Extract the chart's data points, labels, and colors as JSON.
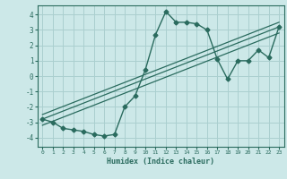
{
  "xlabel": "Humidex (Indice chaleur)",
  "ylabel": "",
  "xlim": [
    -0.5,
    23.5
  ],
  "ylim": [
    -4.6,
    4.6
  ],
  "yticks": [
    -4,
    -3,
    -2,
    -1,
    0,
    1,
    2,
    3,
    4
  ],
  "xticks": [
    0,
    1,
    2,
    3,
    4,
    5,
    6,
    7,
    8,
    9,
    10,
    11,
    12,
    13,
    14,
    15,
    16,
    17,
    18,
    19,
    20,
    21,
    22,
    23
  ],
  "background_color": "#cce8e8",
  "grid_color": "#aacfcf",
  "line_color": "#2a6b5e",
  "series": [
    {
      "x": [
        0,
        1,
        2,
        3,
        4,
        5,
        6,
        7,
        8,
        9,
        10,
        11,
        12,
        13,
        14,
        15,
        16,
        17,
        18,
        19,
        20,
        21,
        22,
        23
      ],
      "y": [
        -2.8,
        -3.0,
        -3.4,
        -3.5,
        -3.6,
        -3.8,
        -3.9,
        -3.8,
        -2.0,
        -1.3,
        0.4,
        2.7,
        4.2,
        3.5,
        3.5,
        3.4,
        3.0,
        1.1,
        -0.2,
        1.0,
        1.0,
        1.7,
        1.2,
        3.2
      ],
      "marker": "D",
      "markersize": 2.5,
      "linewidth": 1.0
    },
    {
      "x": [
        0,
        23
      ],
      "y": [
        -2.8,
        3.2
      ],
      "marker": null,
      "markersize": 0,
      "linewidth": 0.9
    },
    {
      "x": [
        0,
        23
      ],
      "y": [
        -3.2,
        2.8
      ],
      "marker": null,
      "markersize": 0,
      "linewidth": 0.9
    },
    {
      "x": [
        0,
        23
      ],
      "y": [
        -2.5,
        3.5
      ],
      "marker": null,
      "markersize": 0,
      "linewidth": 0.9
    }
  ]
}
